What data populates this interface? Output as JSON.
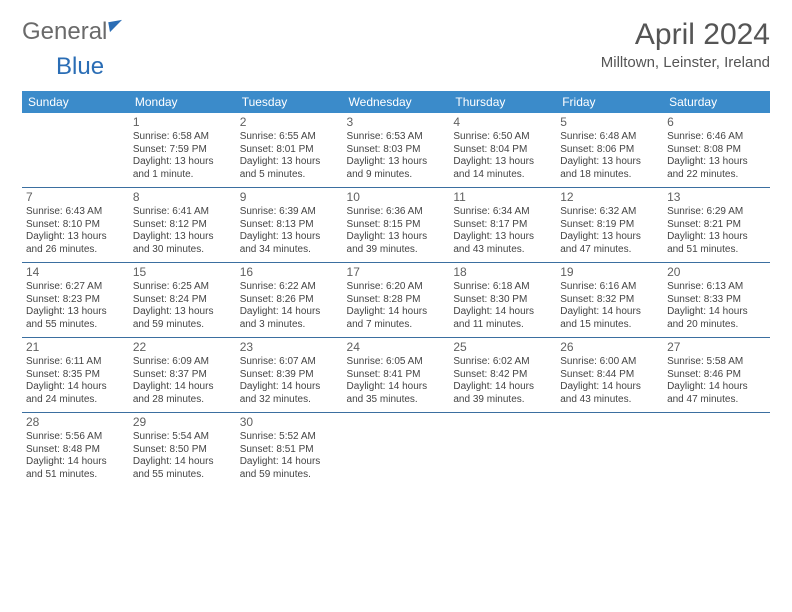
{
  "branding": {
    "word1": "General",
    "word2": "Blue",
    "word1_color": "#6a6a6a",
    "word2_color": "#2a6db5",
    "mark_color": "#2a6db5"
  },
  "header": {
    "title": "April 2024",
    "location": "Milltown, Leinster, Ireland",
    "title_color": "#555555",
    "title_fontsize": 30
  },
  "style": {
    "header_bg": "#3b8bca",
    "header_fg": "#ffffff",
    "row_divider": "#3b6fa0",
    "cell_text_color": "#444444",
    "daynum_color": "#606060",
    "cell_fontsize": 10,
    "daynum_fontsize": 12
  },
  "columns": [
    "Sunday",
    "Monday",
    "Tuesday",
    "Wednesday",
    "Thursday",
    "Friday",
    "Saturday"
  ],
  "weeks": [
    [
      null,
      {
        "n": "1",
        "sr": "Sunrise: 6:58 AM",
        "ss": "Sunset: 7:59 PM",
        "d1": "Daylight: 13 hours",
        "d2": "and 1 minute."
      },
      {
        "n": "2",
        "sr": "Sunrise: 6:55 AM",
        "ss": "Sunset: 8:01 PM",
        "d1": "Daylight: 13 hours",
        "d2": "and 5 minutes."
      },
      {
        "n": "3",
        "sr": "Sunrise: 6:53 AM",
        "ss": "Sunset: 8:03 PM",
        "d1": "Daylight: 13 hours",
        "d2": "and 9 minutes."
      },
      {
        "n": "4",
        "sr": "Sunrise: 6:50 AM",
        "ss": "Sunset: 8:04 PM",
        "d1": "Daylight: 13 hours",
        "d2": "and 14 minutes."
      },
      {
        "n": "5",
        "sr": "Sunrise: 6:48 AM",
        "ss": "Sunset: 8:06 PM",
        "d1": "Daylight: 13 hours",
        "d2": "and 18 minutes."
      },
      {
        "n": "6",
        "sr": "Sunrise: 6:46 AM",
        "ss": "Sunset: 8:08 PM",
        "d1": "Daylight: 13 hours",
        "d2": "and 22 minutes."
      }
    ],
    [
      {
        "n": "7",
        "sr": "Sunrise: 6:43 AM",
        "ss": "Sunset: 8:10 PM",
        "d1": "Daylight: 13 hours",
        "d2": "and 26 minutes."
      },
      {
        "n": "8",
        "sr": "Sunrise: 6:41 AM",
        "ss": "Sunset: 8:12 PM",
        "d1": "Daylight: 13 hours",
        "d2": "and 30 minutes."
      },
      {
        "n": "9",
        "sr": "Sunrise: 6:39 AM",
        "ss": "Sunset: 8:13 PM",
        "d1": "Daylight: 13 hours",
        "d2": "and 34 minutes."
      },
      {
        "n": "10",
        "sr": "Sunrise: 6:36 AM",
        "ss": "Sunset: 8:15 PM",
        "d1": "Daylight: 13 hours",
        "d2": "and 39 minutes."
      },
      {
        "n": "11",
        "sr": "Sunrise: 6:34 AM",
        "ss": "Sunset: 8:17 PM",
        "d1": "Daylight: 13 hours",
        "d2": "and 43 minutes."
      },
      {
        "n": "12",
        "sr": "Sunrise: 6:32 AM",
        "ss": "Sunset: 8:19 PM",
        "d1": "Daylight: 13 hours",
        "d2": "and 47 minutes."
      },
      {
        "n": "13",
        "sr": "Sunrise: 6:29 AM",
        "ss": "Sunset: 8:21 PM",
        "d1": "Daylight: 13 hours",
        "d2": "and 51 minutes."
      }
    ],
    [
      {
        "n": "14",
        "sr": "Sunrise: 6:27 AM",
        "ss": "Sunset: 8:23 PM",
        "d1": "Daylight: 13 hours",
        "d2": "and 55 minutes."
      },
      {
        "n": "15",
        "sr": "Sunrise: 6:25 AM",
        "ss": "Sunset: 8:24 PM",
        "d1": "Daylight: 13 hours",
        "d2": "and 59 minutes."
      },
      {
        "n": "16",
        "sr": "Sunrise: 6:22 AM",
        "ss": "Sunset: 8:26 PM",
        "d1": "Daylight: 14 hours",
        "d2": "and 3 minutes."
      },
      {
        "n": "17",
        "sr": "Sunrise: 6:20 AM",
        "ss": "Sunset: 8:28 PM",
        "d1": "Daylight: 14 hours",
        "d2": "and 7 minutes."
      },
      {
        "n": "18",
        "sr": "Sunrise: 6:18 AM",
        "ss": "Sunset: 8:30 PM",
        "d1": "Daylight: 14 hours",
        "d2": "and 11 minutes."
      },
      {
        "n": "19",
        "sr": "Sunrise: 6:16 AM",
        "ss": "Sunset: 8:32 PM",
        "d1": "Daylight: 14 hours",
        "d2": "and 15 minutes."
      },
      {
        "n": "20",
        "sr": "Sunrise: 6:13 AM",
        "ss": "Sunset: 8:33 PM",
        "d1": "Daylight: 14 hours",
        "d2": "and 20 minutes."
      }
    ],
    [
      {
        "n": "21",
        "sr": "Sunrise: 6:11 AM",
        "ss": "Sunset: 8:35 PM",
        "d1": "Daylight: 14 hours",
        "d2": "and 24 minutes."
      },
      {
        "n": "22",
        "sr": "Sunrise: 6:09 AM",
        "ss": "Sunset: 8:37 PM",
        "d1": "Daylight: 14 hours",
        "d2": "and 28 minutes."
      },
      {
        "n": "23",
        "sr": "Sunrise: 6:07 AM",
        "ss": "Sunset: 8:39 PM",
        "d1": "Daylight: 14 hours",
        "d2": "and 32 minutes."
      },
      {
        "n": "24",
        "sr": "Sunrise: 6:05 AM",
        "ss": "Sunset: 8:41 PM",
        "d1": "Daylight: 14 hours",
        "d2": "and 35 minutes."
      },
      {
        "n": "25",
        "sr": "Sunrise: 6:02 AM",
        "ss": "Sunset: 8:42 PM",
        "d1": "Daylight: 14 hours",
        "d2": "and 39 minutes."
      },
      {
        "n": "26",
        "sr": "Sunrise: 6:00 AM",
        "ss": "Sunset: 8:44 PM",
        "d1": "Daylight: 14 hours",
        "d2": "and 43 minutes."
      },
      {
        "n": "27",
        "sr": "Sunrise: 5:58 AM",
        "ss": "Sunset: 8:46 PM",
        "d1": "Daylight: 14 hours",
        "d2": "and 47 minutes."
      }
    ],
    [
      {
        "n": "28",
        "sr": "Sunrise: 5:56 AM",
        "ss": "Sunset: 8:48 PM",
        "d1": "Daylight: 14 hours",
        "d2": "and 51 minutes."
      },
      {
        "n": "29",
        "sr": "Sunrise: 5:54 AM",
        "ss": "Sunset: 8:50 PM",
        "d1": "Daylight: 14 hours",
        "d2": "and 55 minutes."
      },
      {
        "n": "30",
        "sr": "Sunrise: 5:52 AM",
        "ss": "Sunset: 8:51 PM",
        "d1": "Daylight: 14 hours",
        "d2": "and 59 minutes."
      },
      null,
      null,
      null,
      null
    ]
  ]
}
